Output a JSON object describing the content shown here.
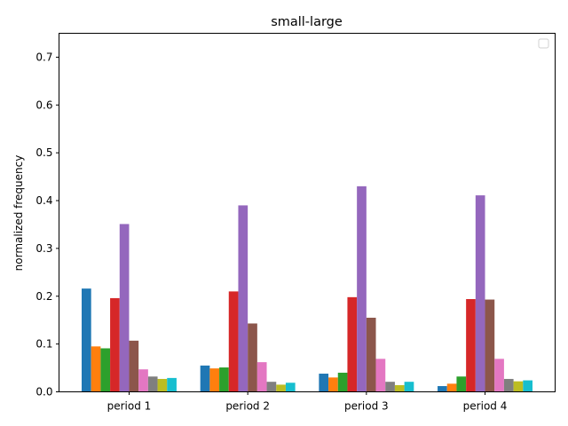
{
  "chart_data": {
    "type": "bar",
    "title": "small-large",
    "xlabel": "",
    "ylabel": "normalized frequency",
    "categories": [
      "period 1",
      "period 2",
      "period 3",
      "period 4"
    ],
    "ylim": [
      0,
      0.75
    ],
    "yticks": [
      0.0,
      0.1,
      0.2,
      0.3,
      0.4,
      0.5,
      0.6,
      0.7
    ],
    "ytick_labels": [
      "0.0",
      "0.1",
      "0.2",
      "0.3",
      "0.4",
      "0.5",
      "0.6",
      "0.7"
    ],
    "grid": false,
    "legend": "upper-right (empty)",
    "colors": [
      "#1f77b4",
      "#ff7f0e",
      "#2ca02c",
      "#d62728",
      "#9467bd",
      "#8c564b",
      "#e377c2",
      "#7f7f7f",
      "#bcbd22",
      "#17becf"
    ],
    "series": [
      {
        "values": [
          0.216,
          0.055,
          0.038,
          0.012
        ]
      },
      {
        "values": [
          0.095,
          0.049,
          0.03,
          0.017
        ]
      },
      {
        "values": [
          0.091,
          0.051,
          0.04,
          0.032
        ]
      },
      {
        "values": [
          0.196,
          0.21,
          0.198,
          0.194
        ]
      },
      {
        "values": [
          0.351,
          0.39,
          0.43,
          0.411
        ]
      },
      {
        "values": [
          0.107,
          0.143,
          0.155,
          0.193
        ]
      },
      {
        "values": [
          0.047,
          0.062,
          0.069,
          0.069
        ]
      },
      {
        "values": [
          0.032,
          0.021,
          0.021,
          0.027
        ]
      },
      {
        "values": [
          0.027,
          0.015,
          0.014,
          0.022
        ]
      },
      {
        "values": [
          0.029,
          0.019,
          0.021,
          0.024
        ]
      }
    ]
  }
}
